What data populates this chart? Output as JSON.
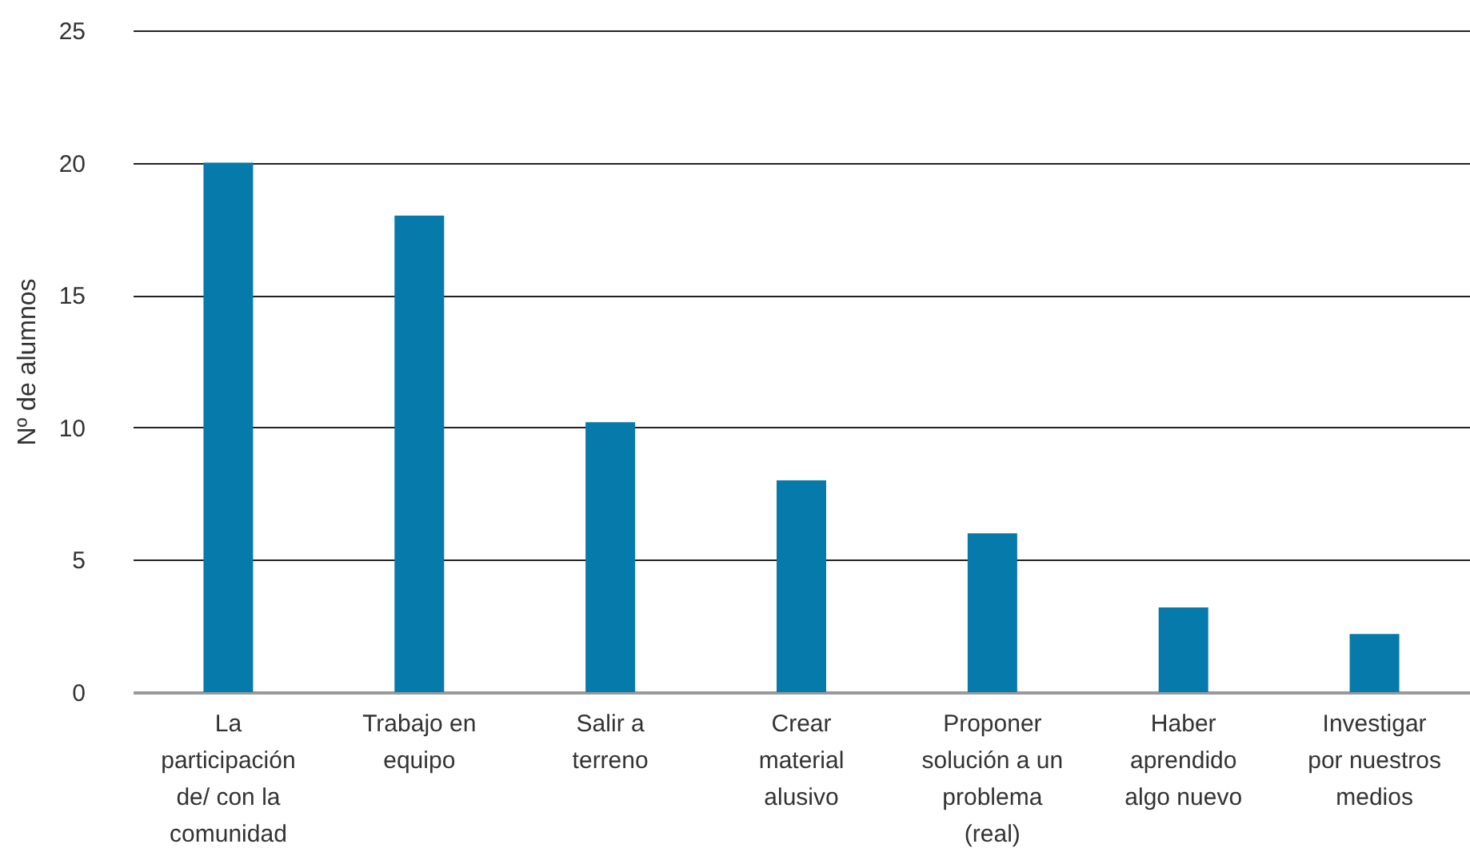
{
  "chart_data": {
    "type": "bar",
    "ylabel": "Nº de alumnos",
    "categories": [
      "La participación de/ con la comunidad",
      "Trabajo en equipo",
      "Salir a terreno",
      "Crear material alusivo",
      "Proponer solución a un problema (real)",
      "Haber aprendido algo nuevo",
      "Investigar por nuestros medios"
    ],
    "values": [
      20,
      18,
      10.2,
      8,
      6,
      3.2,
      2.2
    ],
    "color": "#067aab",
    "ylim": [
      0,
      25
    ],
    "yticks": [
      0,
      5,
      10,
      15,
      20,
      25
    ],
    "grid": "y"
  }
}
